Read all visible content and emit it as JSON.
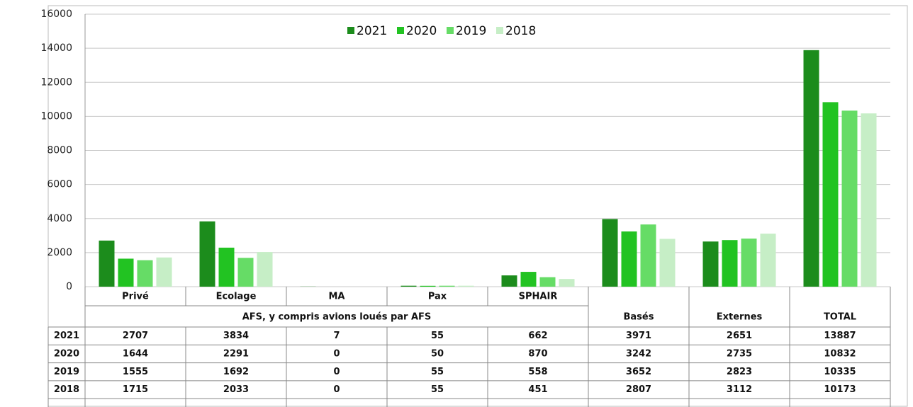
{
  "chart_data": {
    "type": "bar",
    "categories": [
      "Privé",
      "Ecolage",
      "MA",
      "Pax",
      "SPHAIR",
      "Basés",
      "Externes",
      "TOTAL"
    ],
    "group_label": "AFS, y compris avions loués par AFS",
    "series": [
      {
        "name": "2021",
        "color": "#1c8c1c",
        "values": [
          2707,
          3834,
          7,
          55,
          662,
          3971,
          2651,
          13887
        ]
      },
      {
        "name": "2020",
        "color": "#22c322",
        "values": [
          1644,
          2291,
          0,
          50,
          870,
          3242,
          2735,
          10832
        ]
      },
      {
        "name": "2019",
        "color": "#66dc66",
        "values": [
          1555,
          1692,
          0,
          55,
          558,
          3652,
          2823,
          10335
        ]
      },
      {
        "name": "2018",
        "color": "#c6eec6",
        "values": [
          1715,
          2033,
          0,
          55,
          451,
          2807,
          3112,
          10173
        ]
      }
    ],
    "ylim": [
      0,
      16000
    ],
    "yticks": [
      0,
      2000,
      4000,
      6000,
      8000,
      10000,
      12000,
      14000,
      16000
    ],
    "grid": true,
    "legend": "top"
  }
}
